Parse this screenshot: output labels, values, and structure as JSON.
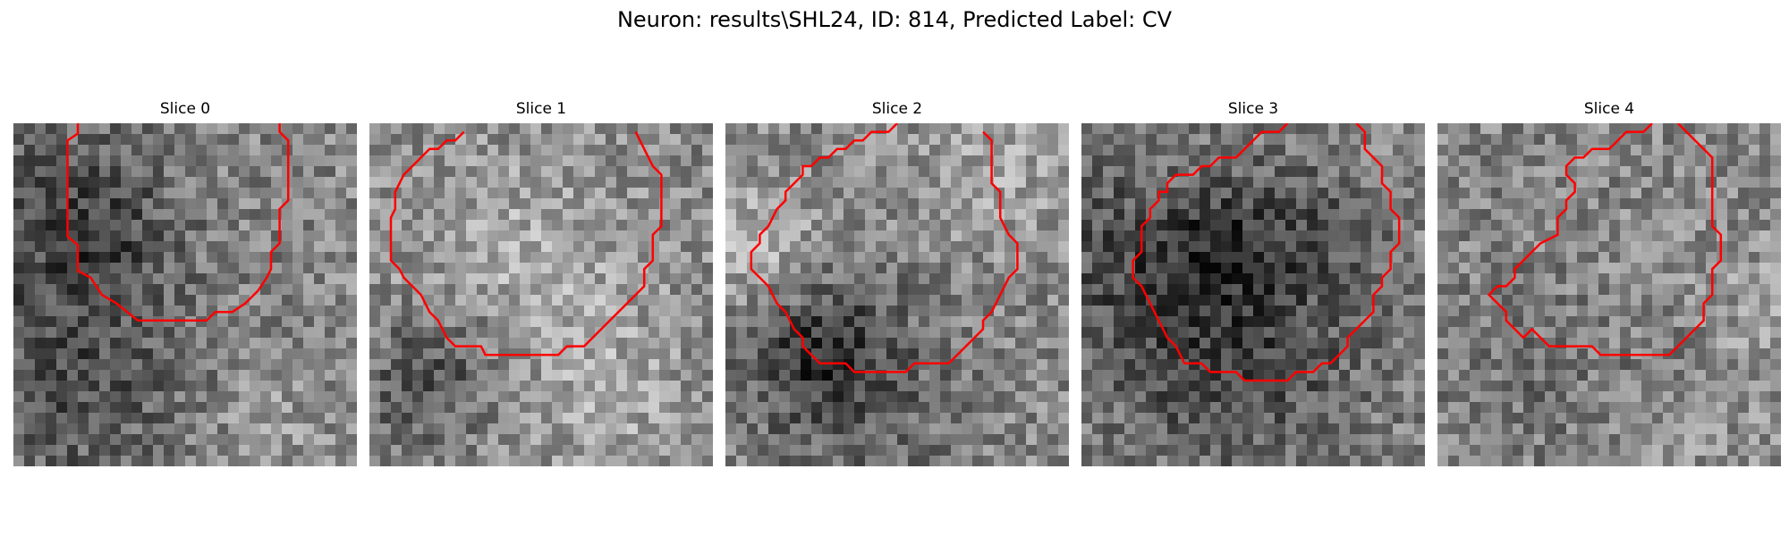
{
  "figure": {
    "title": "Neuron: results\\SHL24, ID: 814, Predicted Label: CV"
  },
  "colors": {
    "contour": "#ff0000",
    "background": "#ffffff"
  },
  "panels": [
    {
      "title": "Slice 0",
      "seed": 11,
      "contour": [
        [
          7.5,
          0
        ],
        [
          7.5,
          1.2
        ],
        [
          6.3,
          2
        ],
        [
          6.3,
          13.2
        ],
        [
          7.5,
          14.2
        ],
        [
          7.5,
          17.2
        ],
        [
          9,
          18
        ],
        [
          10.3,
          20
        ],
        [
          12,
          21
        ],
        [
          13.5,
          22.2
        ],
        [
          14.5,
          23
        ],
        [
          22.5,
          23
        ],
        [
          23.5,
          22
        ],
        [
          25.5,
          22
        ],
        [
          27,
          21
        ],
        [
          28.5,
          19.5
        ],
        [
          29.5,
          18
        ],
        [
          30,
          17
        ],
        [
          30,
          15
        ],
        [
          31,
          14
        ],
        [
          31,
          10
        ],
        [
          32,
          9
        ],
        [
          32,
          2
        ],
        [
          31,
          1
        ],
        [
          31,
          0
        ]
      ]
    },
    {
      "title": "Slice 1",
      "seed": 23,
      "contour": [
        [
          11,
          1
        ],
        [
          10,
          2
        ],
        [
          9,
          2
        ],
        [
          8,
          3
        ],
        [
          7,
          3
        ],
        [
          6,
          4
        ],
        [
          5,
          5
        ],
        [
          4,
          6
        ],
        [
          3,
          8
        ],
        [
          3,
          10
        ],
        [
          2.5,
          11
        ],
        [
          2.5,
          16
        ],
        [
          3.5,
          17
        ],
        [
          4,
          18
        ],
        [
          5,
          19
        ],
        [
          6,
          20
        ],
        [
          7,
          22
        ],
        [
          8,
          23
        ],
        [
          9,
          25
        ],
        [
          10,
          26
        ],
        [
          13,
          26
        ],
        [
          13.5,
          27
        ],
        [
          22,
          27
        ],
        [
          23,
          26
        ],
        [
          25,
          26
        ],
        [
          26,
          25
        ],
        [
          27,
          24
        ],
        [
          28,
          23
        ],
        [
          30,
          21
        ],
        [
          32,
          19
        ],
        [
          32,
          17
        ],
        [
          33,
          16
        ],
        [
          33,
          13
        ],
        [
          34,
          12
        ],
        [
          34,
          6
        ],
        [
          33,
          5
        ],
        [
          32,
          3
        ],
        [
          31,
          1
        ]
      ]
    },
    {
      "title": "Slice 2",
      "seed": 37,
      "contour": [
        [
          20,
          0
        ],
        [
          19,
          1
        ],
        [
          17,
          1
        ],
        [
          16,
          2
        ],
        [
          15,
          2
        ],
        [
          14,
          3
        ],
        [
          13,
          3
        ],
        [
          12,
          4
        ],
        [
          11,
          4
        ],
        [
          10,
          5
        ],
        [
          9,
          5
        ],
        [
          9,
          6
        ],
        [
          8,
          7
        ],
        [
          7,
          8
        ],
        [
          7,
          9
        ],
        [
          6,
          10
        ],
        [
          5,
          12
        ],
        [
          4,
          13
        ],
        [
          4,
          14
        ],
        [
          3,
          15
        ],
        [
          3,
          17
        ],
        [
          4,
          18
        ],
        [
          5,
          19
        ],
        [
          6,
          21
        ],
        [
          7,
          22
        ],
        [
          8,
          24
        ],
        [
          9,
          25
        ],
        [
          9,
          26
        ],
        [
          10,
          27
        ],
        [
          11,
          28
        ],
        [
          14,
          28
        ],
        [
          15,
          29
        ],
        [
          21,
          29
        ],
        [
          22,
          28
        ],
        [
          26,
          28
        ],
        [
          27,
          27
        ],
        [
          28,
          26
        ],
        [
          29,
          25
        ],
        [
          30,
          24
        ],
        [
          30,
          23
        ],
        [
          31,
          22
        ],
        [
          32,
          20
        ],
        [
          33,
          18
        ],
        [
          34,
          17
        ],
        [
          34,
          14
        ],
        [
          33,
          13
        ],
        [
          32,
          11
        ],
        [
          32,
          8
        ],
        [
          31,
          7
        ],
        [
          31,
          2
        ],
        [
          30,
          1
        ]
      ]
    },
    {
      "title": "Slice 3",
      "seed": 53,
      "contour": [
        [
          24,
          0
        ],
        [
          23,
          1
        ],
        [
          21,
          1
        ],
        [
          20,
          2
        ],
        [
          19,
          3
        ],
        [
          18,
          4
        ],
        [
          16,
          4
        ],
        [
          15,
          5
        ],
        [
          14,
          5
        ],
        [
          13,
          6
        ],
        [
          11,
          6
        ],
        [
          10,
          7
        ],
        [
          10,
          8
        ],
        [
          9,
          8
        ],
        [
          9,
          9
        ],
        [
          8,
          10
        ],
        [
          8,
          11
        ],
        [
          7,
          12
        ],
        [
          7,
          15
        ],
        [
          6,
          16
        ],
        [
          6,
          18
        ],
        [
          7,
          19
        ],
        [
          8,
          21
        ],
        [
          9,
          23
        ],
        [
          10,
          25
        ],
        [
          11,
          26
        ],
        [
          12,
          28
        ],
        [
          14,
          28
        ],
        [
          15,
          29
        ],
        [
          18,
          29
        ],
        [
          19,
          30
        ],
        [
          24,
          30
        ],
        [
          25,
          29
        ],
        [
          27,
          29
        ],
        [
          28,
          28
        ],
        [
          29,
          28
        ],
        [
          30,
          27
        ],
        [
          31,
          26
        ],
        [
          31,
          25
        ],
        [
          33,
          23
        ],
        [
          34,
          22
        ],
        [
          34,
          20
        ],
        [
          35,
          19
        ],
        [
          35,
          18
        ],
        [
          36,
          17
        ],
        [
          36,
          15
        ],
        [
          37,
          14
        ],
        [
          37,
          11
        ],
        [
          36,
          10
        ],
        [
          36,
          8
        ],
        [
          35,
          7
        ],
        [
          35,
          5
        ],
        [
          34,
          4
        ],
        [
          33,
          3
        ],
        [
          33,
          1
        ],
        [
          32,
          0
        ]
      ]
    },
    {
      "title": "Slice 4",
      "seed": 71,
      "contour": [
        [
          25,
          0
        ],
        [
          24,
          1
        ],
        [
          22,
          1
        ],
        [
          21,
          2
        ],
        [
          20,
          3
        ],
        [
          18,
          3
        ],
        [
          17,
          4
        ],
        [
          16,
          4
        ],
        [
          15,
          5
        ],
        [
          15,
          6
        ],
        [
          16,
          7
        ],
        [
          16,
          8
        ],
        [
          15,
          9
        ],
        [
          15,
          10
        ],
        [
          14,
          11
        ],
        [
          14,
          13
        ],
        [
          12,
          14
        ],
        [
          11,
          15
        ],
        [
          10,
          16
        ],
        [
          9,
          17
        ],
        [
          9,
          18
        ],
        [
          8,
          19
        ],
        [
          7,
          19
        ],
        [
          6,
          20
        ],
        [
          7,
          21
        ],
        [
          8,
          22
        ],
        [
          8,
          23
        ],
        [
          9,
          24
        ],
        [
          10,
          25
        ],
        [
          11,
          24
        ],
        [
          12,
          25
        ],
        [
          13,
          26
        ],
        [
          18,
          26
        ],
        [
          19,
          27
        ],
        [
          27,
          27
        ],
        [
          28,
          26
        ],
        [
          29,
          25
        ],
        [
          30,
          24
        ],
        [
          31,
          23
        ],
        [
          31,
          21
        ],
        [
          32,
          20
        ],
        [
          32,
          17
        ],
        [
          33,
          16
        ],
        [
          33,
          13
        ],
        [
          32,
          12
        ],
        [
          32,
          4
        ],
        [
          31,
          3
        ],
        [
          30,
          2
        ],
        [
          29,
          1
        ],
        [
          28,
          0
        ]
      ]
    }
  ]
}
